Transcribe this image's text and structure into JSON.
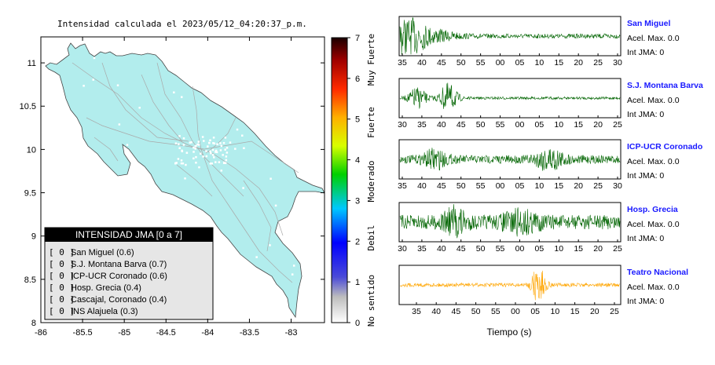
{
  "map": {
    "title": "Intensidad calculada el 2023/05/12_04:20:37_p.m.",
    "x_ticks": [
      "-86",
      "-85.5",
      "-85",
      "-84.5",
      "-84",
      "-83.5",
      "-83"
    ],
    "y_ticks": [
      "11",
      "10.5",
      "10",
      "9.5",
      "9",
      "8.5",
      "8"
    ],
    "colorbar_ticks": [
      "0",
      "1",
      "2",
      "3",
      "4",
      "5",
      "6",
      "7"
    ],
    "colorbar_labels": [
      "No sentido",
      "Debil",
      "Moderado",
      "Fuerte",
      "Muy Fuerte"
    ],
    "legend": {
      "title": "INTENSIDAD JMA [0 a 7]",
      "items": [
        {
          "mark": "[ 0 ]",
          "label": "San Miguel (0.6)"
        },
        {
          "mark": "[ 0 ]",
          "label": "S.J. Montana Barva (0.7)"
        },
        {
          "mark": "[ 0 ]",
          "label": "ICP-UCR Coronado (0.6)"
        },
        {
          "mark": "[ 0 ]",
          "label": "Hosp. Grecia (0.4)"
        },
        {
          "mark": "[ 0 ]",
          "label": "Cascajal, Coronado (0.4)"
        },
        {
          "mark": "[ 0 ]",
          "label": "INS Alajuela (0.3)"
        }
      ]
    }
  },
  "chart_data": [
    {
      "type": "map",
      "xlim": [
        -86,
        -82.6
      ],
      "ylim": [
        8,
        11.3
      ],
      "colors": {
        "land": "#b2eded",
        "roads": "#a9a9a9",
        "stations": "#ffffff"
      }
    },
    {
      "type": "line",
      "xlabel": "Tiempo (s)",
      "colors": {
        "trace": "#006400",
        "highlight": "#ffa500",
        "station_name": "#1a1aff"
      },
      "stations": [
        {
          "name": "San Miguel",
          "accel": "Acel. Max. 0.0",
          "int": "Int JMA: 0",
          "ticks": [
            "35",
            "40",
            "45",
            "50",
            "55",
            "00",
            "05",
            "10",
            "15",
            "20",
            "25",
            "30"
          ],
          "highlight": false
        },
        {
          "name": "S.J. Montana Barva",
          "accel": "Acel. Max. 0.0",
          "int": "Int JMA: 0",
          "ticks": [
            "30",
            "35",
            "40",
            "45",
            "50",
            "55",
            "00",
            "05",
            "10",
            "15",
            "20",
            "25"
          ],
          "highlight": false
        },
        {
          "name": "ICP-UCR Coronado",
          "accel": "Acel. Max. 0.0",
          "int": "Int JMA: 0",
          "ticks": [
            "35",
            "40",
            "45",
            "50",
            "55",
            "00",
            "05",
            "10",
            "15",
            "20",
            "25",
            "30"
          ],
          "highlight": false
        },
        {
          "name": "Hosp. Grecia",
          "accel": "Acel. Max. 0.0",
          "int": "Int JMA: 0",
          "ticks": [
            "30",
            "35",
            "40",
            "45",
            "50",
            "55",
            "00",
            "05",
            "10",
            "15",
            "20",
            "25"
          ],
          "highlight": false
        },
        {
          "name": "Teatro Nacional",
          "accel": "Acel. Max. 0.0",
          "int": "Int JMA: 0",
          "ticks": [
            "35",
            "40",
            "45",
            "50",
            "55",
            "00",
            "05",
            "10",
            "15",
            "20",
            "25"
          ],
          "highlight": true
        }
      ]
    }
  ]
}
